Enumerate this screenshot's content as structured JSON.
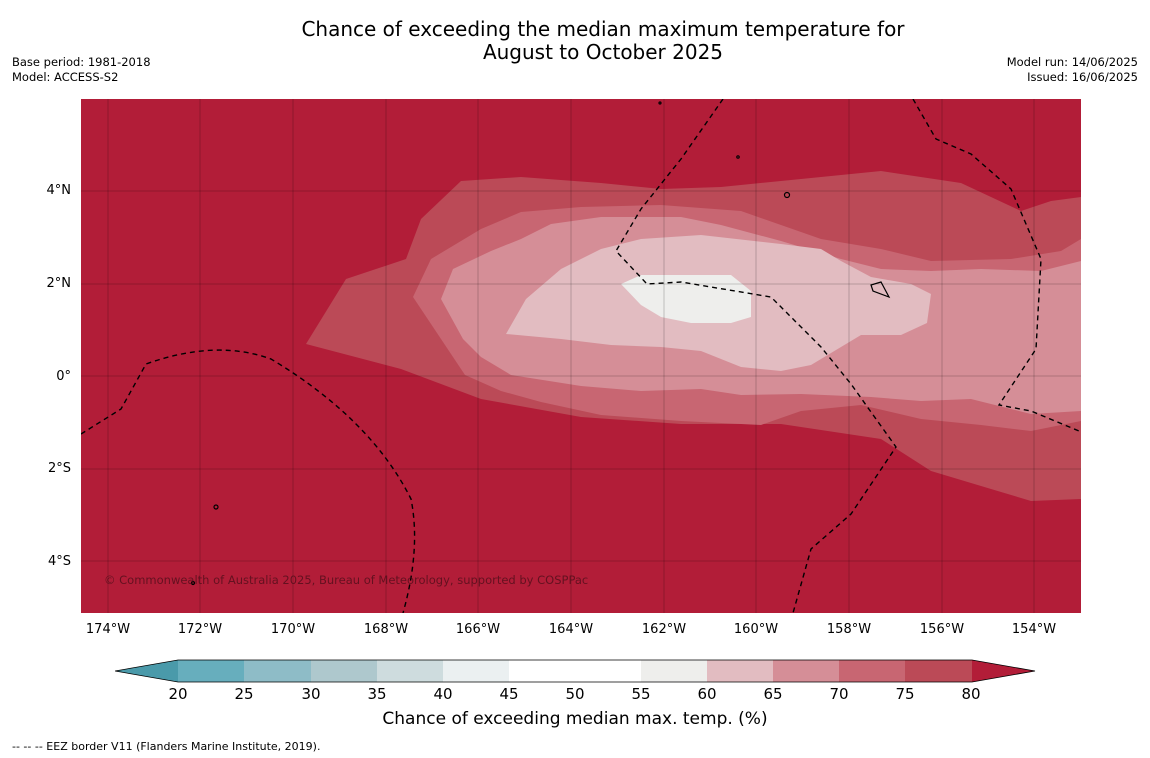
{
  "title_line1": "Chance of exceeding the median maximum temperature for",
  "title_line2": "August to October 2025",
  "meta_left": {
    "base_period": "Base period: 1981-2018",
    "model": "Model: ACCESS-S2"
  },
  "meta_right": {
    "model_run": "Model run: 14/06/2025",
    "issued": "Issued: 16/06/2025"
  },
  "copyright": "© Commonwealth of Australia 2025, Bureau of Meteorology, supported by COSPPac",
  "y_ticks": [
    "4°N",
    "2°N",
    "0°",
    "2°S",
    "4°S"
  ],
  "x_ticks": [
    "174°W",
    "172°W",
    "170°W",
    "168°W",
    "166°W",
    "164°W",
    "162°W",
    "160°W",
    "158°W",
    "156°W",
    "154°W"
  ],
  "colorbar": {
    "label": "Chance of exceeding median max. temp. (%)",
    "ticks": [
      "20",
      "25",
      "30",
      "35",
      "40",
      "45",
      "50",
      "55",
      "60",
      "65",
      "70",
      "75",
      "80"
    ],
    "colors": [
      "#4a9aaa",
      "#67aebd",
      "#8ebcc7",
      "#aec8cd",
      "#cedcde",
      "#ebf0f1",
      "#ffffff",
      "#ffffff",
      "#eeeeec",
      "#e2bcc1",
      "#d58e97",
      "#c86672",
      "#bb4a57",
      "#b21d38"
    ]
  },
  "footnote": "-- -- -- EEZ border V11 (Flanders Marine Institute, 2019)."
}
